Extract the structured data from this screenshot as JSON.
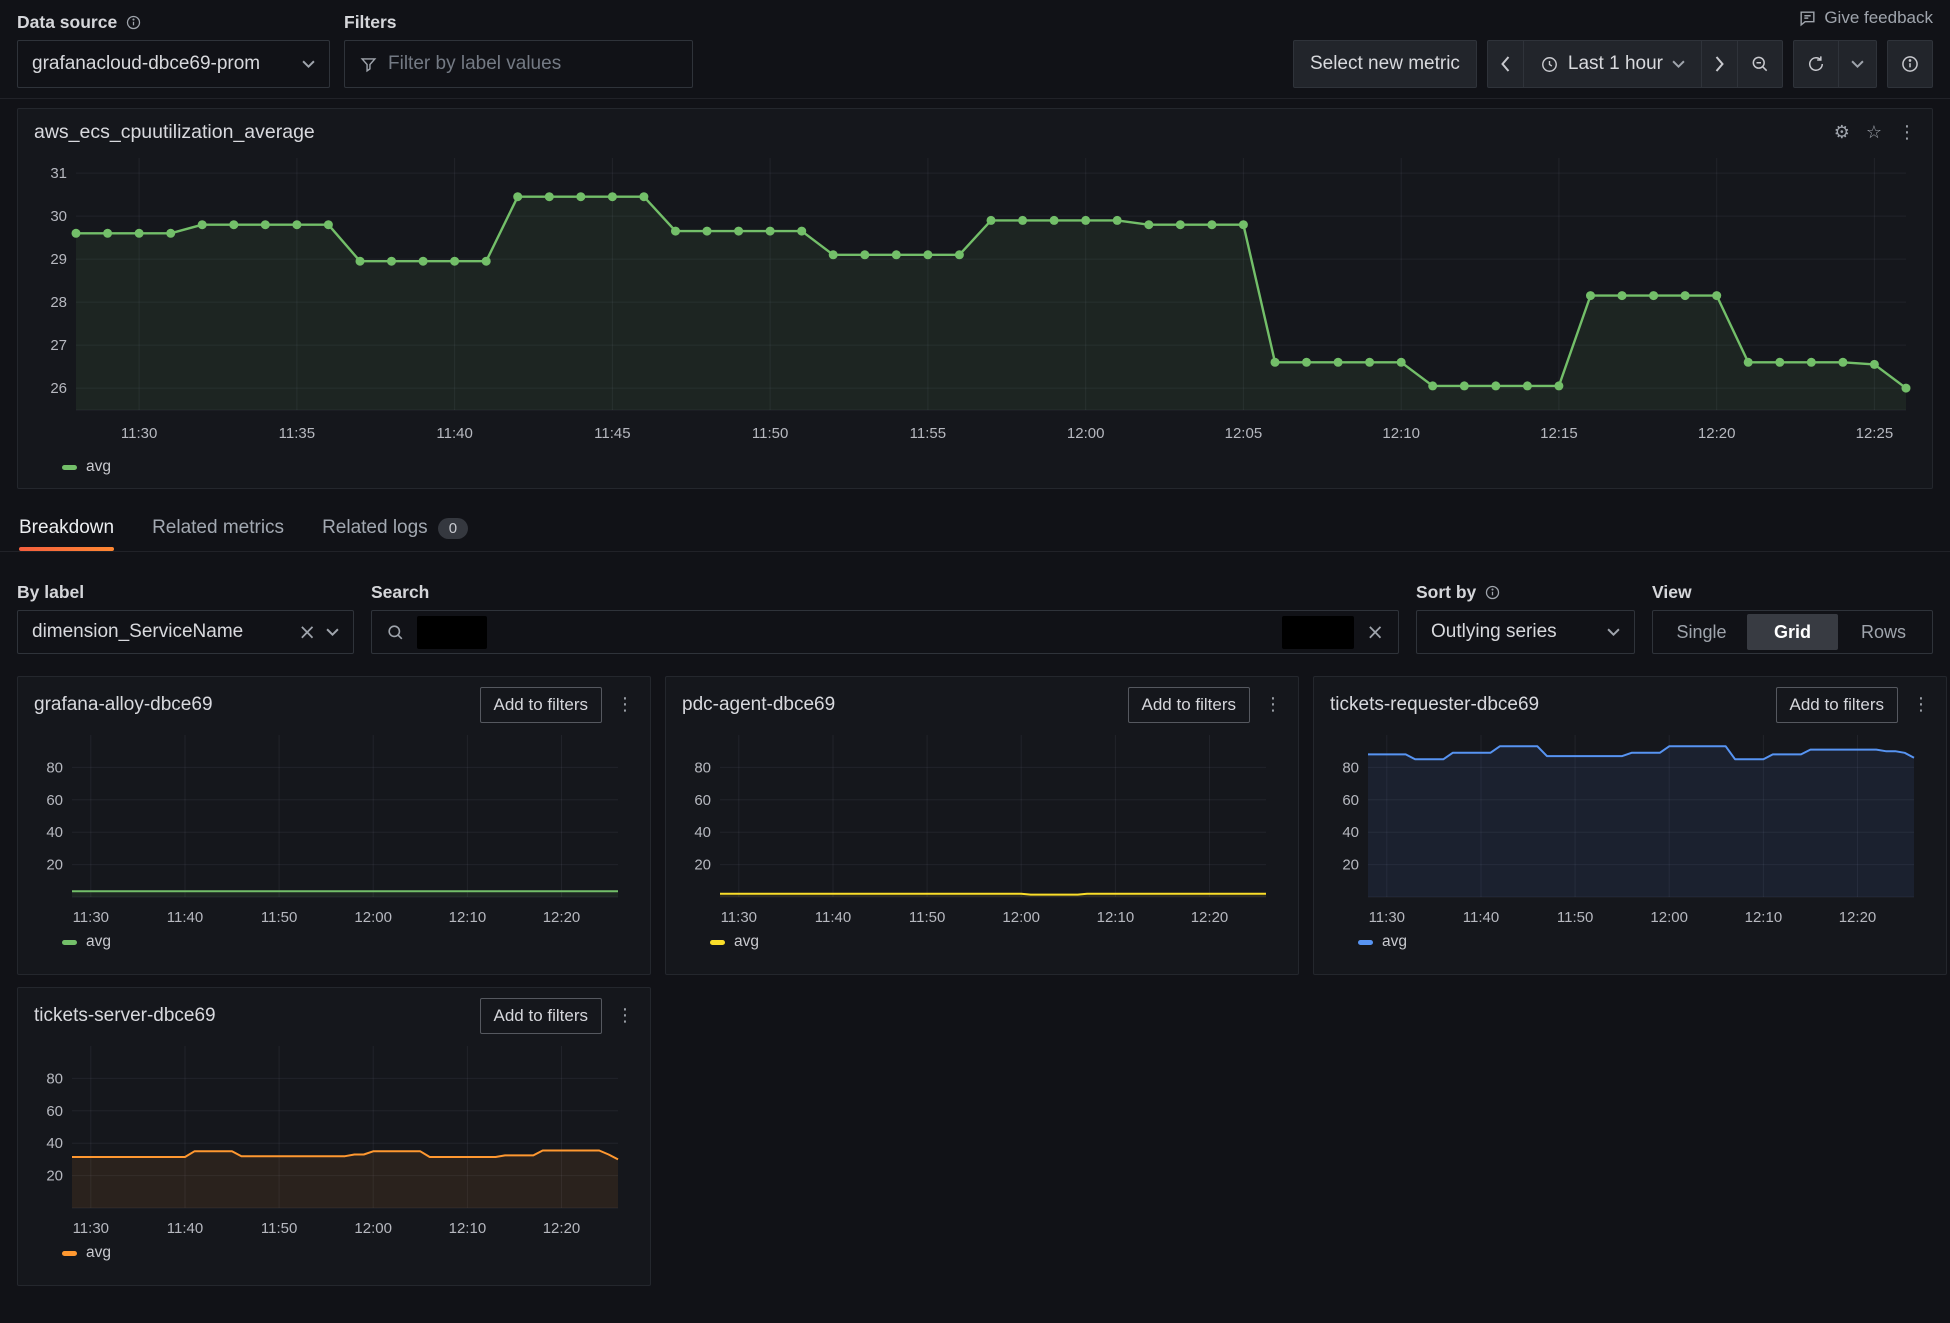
{
  "feedback_label": "Give feedback",
  "toolbar": {
    "datasource_label": "Data source",
    "datasource_value": "grafanacloud-dbce69-prom",
    "filters_label": "Filters",
    "filter_placeholder": "Filter by label values",
    "select_new_metric": "Select new metric",
    "time_range": "Last 1 hour"
  },
  "main_panel": {
    "title": "aws_ecs_cpuutilization_average",
    "legend": "avg"
  },
  "tabs": [
    {
      "label": "Breakdown"
    },
    {
      "label": "Related metrics"
    },
    {
      "label": "Related logs",
      "badge": "0"
    }
  ],
  "controls": {
    "by_label_label": "By label",
    "by_label_value": "dimension_ServiceName",
    "search_label": "Search",
    "sort_by_label": "Sort by",
    "sort_by_value": "Outlying series",
    "view_label": "View",
    "view_options": [
      "Single",
      "Grid",
      "Rows"
    ],
    "view_selected": "Grid"
  },
  "cards": [
    {
      "title": "grafana-alloy-dbce69",
      "action": "Add to filters",
      "legend": "avg"
    },
    {
      "title": "pdc-agent-dbce69",
      "action": "Add to filters",
      "legend": "avg"
    },
    {
      "title": "tickets-requester-dbce69",
      "action": "Add to filters",
      "legend": "avg"
    },
    {
      "title": "tickets-server-dbce69",
      "action": "Add to filters",
      "legend": "avg"
    }
  ],
  "colors": {
    "green": "#73bf69",
    "yellow": "#fade2a",
    "blue": "#5794f2",
    "orange": "#ff9830",
    "tab_accent": "#ff8833"
  },
  "chart_data": [
    {
      "type": "line",
      "title": "aws_ecs_cpuutilization_average",
      "series_label": "avg",
      "color": "#73bf69",
      "markers": true,
      "grid": true,
      "legend_position": "bottom-left",
      "x_start": "11:28",
      "x_step_minutes": 1,
      "ylim": [
        25.49,
        31.35
      ],
      "yticks": [
        26,
        27,
        28,
        29,
        30,
        31
      ],
      "xticks": [
        {
          "i": 2,
          "label": "11:30"
        },
        {
          "i": 7,
          "label": "11:35"
        },
        {
          "i": 12,
          "label": "11:40"
        },
        {
          "i": 17,
          "label": "11:45"
        },
        {
          "i": 22,
          "label": "11:50"
        },
        {
          "i": 27,
          "label": "11:55"
        },
        {
          "i": 32,
          "label": "12:00"
        },
        {
          "i": 37,
          "label": "12:05"
        },
        {
          "i": 42,
          "label": "12:10"
        },
        {
          "i": 47,
          "label": "12:15"
        },
        {
          "i": 52,
          "label": "12:20"
        },
        {
          "i": 57,
          "label": "12:25"
        }
      ],
      "values": [
        29.6,
        29.6,
        29.6,
        29.6,
        29.8,
        29.8,
        29.8,
        29.8,
        29.8,
        28.95,
        28.95,
        28.95,
        28.95,
        28.95,
        30.45,
        30.45,
        30.45,
        30.45,
        30.45,
        29.65,
        29.65,
        29.65,
        29.65,
        29.65,
        29.1,
        29.1,
        29.1,
        29.1,
        29.1,
        29.9,
        29.9,
        29.9,
        29.9,
        29.9,
        29.8,
        29.8,
        29.8,
        29.8,
        26.6,
        26.6,
        26.6,
        26.6,
        26.6,
        26.05,
        26.05,
        26.05,
        26.05,
        26.05,
        28.15,
        28.15,
        28.15,
        28.15,
        28.15,
        26.6,
        26.6,
        26.6,
        26.6,
        26.55,
        26.0
      ]
    },
    {
      "type": "line",
      "title": "grafana-alloy-dbce69",
      "series_label": "avg",
      "color": "#73bf69",
      "markers": false,
      "grid": true,
      "x_start": "11:28",
      "x_step_minutes": 1,
      "ylim": [
        0,
        100
      ],
      "yticks": [
        20,
        40,
        60,
        80
      ],
      "xticks": [
        {
          "i": 2,
          "label": "11:30"
        },
        {
          "i": 12,
          "label": "11:40"
        },
        {
          "i": 22,
          "label": "11:50"
        },
        {
          "i": 32,
          "label": "12:00"
        },
        {
          "i": 42,
          "label": "12:10"
        },
        {
          "i": 52,
          "label": "12:20"
        }
      ],
      "values": [
        3.5,
        3.5,
        3.5,
        3.5,
        3.5,
        3.5,
        3.5,
        3.5,
        3.5,
        3.5,
        3.5,
        3.5,
        3.5,
        3.5,
        3.5,
        3.5,
        3.5,
        3.5,
        3.5,
        3.5,
        3.5,
        3.5,
        3.5,
        3.5,
        3.5,
        3.5,
        3.5,
        3.5,
        3.5,
        3.5,
        3.5,
        3.5,
        3.5,
        3.5,
        3.5,
        3.5,
        3.5,
        3.5,
        3.5,
        3.5,
        3.5,
        3.5,
        3.5,
        3.5,
        3.5,
        3.5,
        3.5,
        3.5,
        3.5,
        3.5,
        3.5,
        3.5,
        3.5,
        3.5,
        3.5,
        3.5,
        3.5,
        3.5,
        3.5
      ]
    },
    {
      "type": "line",
      "title": "pdc-agent-dbce69",
      "series_label": "avg",
      "color": "#fade2a",
      "markers": false,
      "grid": true,
      "x_start": "11:28",
      "x_step_minutes": 1,
      "ylim": [
        0,
        100
      ],
      "yticks": [
        20,
        40,
        60,
        80
      ],
      "xticks": [
        {
          "i": 2,
          "label": "11:30"
        },
        {
          "i": 12,
          "label": "11:40"
        },
        {
          "i": 22,
          "label": "11:50"
        },
        {
          "i": 32,
          "label": "12:00"
        },
        {
          "i": 42,
          "label": "12:10"
        },
        {
          "i": 52,
          "label": "12:20"
        }
      ],
      "values": [
        2,
        2,
        2,
        2,
        2,
        2,
        2,
        2,
        2,
        2,
        2,
        2,
        2,
        2,
        2,
        2,
        2,
        2,
        2,
        2,
        2,
        2,
        2,
        2,
        2,
        2,
        2,
        2,
        2,
        2,
        2,
        2,
        2,
        1.5,
        1.5,
        1.5,
        1.5,
        1.5,
        1.5,
        2,
        2,
        2,
        2,
        2,
        2,
        2,
        2,
        2,
        2,
        2,
        2,
        2,
        2,
        2,
        2,
        2,
        2,
        2,
        2
      ]
    },
    {
      "type": "line",
      "title": "tickets-requester-dbce69",
      "series_label": "avg",
      "color": "#5794f2",
      "markers": false,
      "grid": true,
      "x_start": "11:28",
      "x_step_minutes": 1,
      "ylim": [
        0,
        100
      ],
      "yticks": [
        20,
        40,
        60,
        80
      ],
      "xticks": [
        {
          "i": 2,
          "label": "11:30"
        },
        {
          "i": 12,
          "label": "11:40"
        },
        {
          "i": 22,
          "label": "11:50"
        },
        {
          "i": 32,
          "label": "12:00"
        },
        {
          "i": 42,
          "label": "12:10"
        },
        {
          "i": 52,
          "label": "12:20"
        }
      ],
      "values": [
        88,
        88,
        88,
        88,
        88,
        85,
        85,
        85,
        85,
        89,
        89,
        89,
        89,
        89,
        93,
        93,
        93,
        93,
        93,
        87,
        87,
        87,
        87,
        87,
        87,
        87,
        87,
        87,
        89,
        89,
        89,
        89,
        93,
        93,
        93,
        93,
        93,
        93,
        93,
        85,
        85,
        85,
        85,
        88,
        88,
        88,
        88,
        91,
        91,
        91,
        91,
        91,
        91,
        91,
        91,
        90,
        90,
        89,
        86
      ]
    },
    {
      "type": "line",
      "title": "tickets-server-dbce69",
      "series_label": "avg",
      "color": "#ff9830",
      "markers": false,
      "grid": true,
      "x_start": "11:28",
      "x_step_minutes": 1,
      "ylim": [
        0,
        100
      ],
      "yticks": [
        20,
        40,
        60,
        80
      ],
      "xticks": [
        {
          "i": 2,
          "label": "11:30"
        },
        {
          "i": 12,
          "label": "11:40"
        },
        {
          "i": 22,
          "label": "11:50"
        },
        {
          "i": 32,
          "label": "12:00"
        },
        {
          "i": 42,
          "label": "12:10"
        },
        {
          "i": 52,
          "label": "12:20"
        }
      ],
      "values": [
        31.5,
        31.5,
        31.5,
        31.5,
        31.5,
        31.5,
        31.5,
        31.5,
        31.5,
        31.5,
        31.5,
        31.5,
        31.5,
        35,
        35,
        35,
        35,
        35,
        32,
        32,
        32,
        32,
        32,
        32,
        32,
        32,
        32,
        32,
        32,
        32,
        33,
        33,
        35,
        35,
        35,
        35,
        35,
        35,
        31.5,
        31.5,
        31.5,
        31.5,
        31.5,
        31.5,
        31.5,
        31.5,
        32.5,
        32.5,
        32.5,
        32.5,
        35.5,
        35.5,
        35.5,
        35.5,
        35.5,
        35.5,
        35.5,
        33,
        30
      ]
    }
  ]
}
